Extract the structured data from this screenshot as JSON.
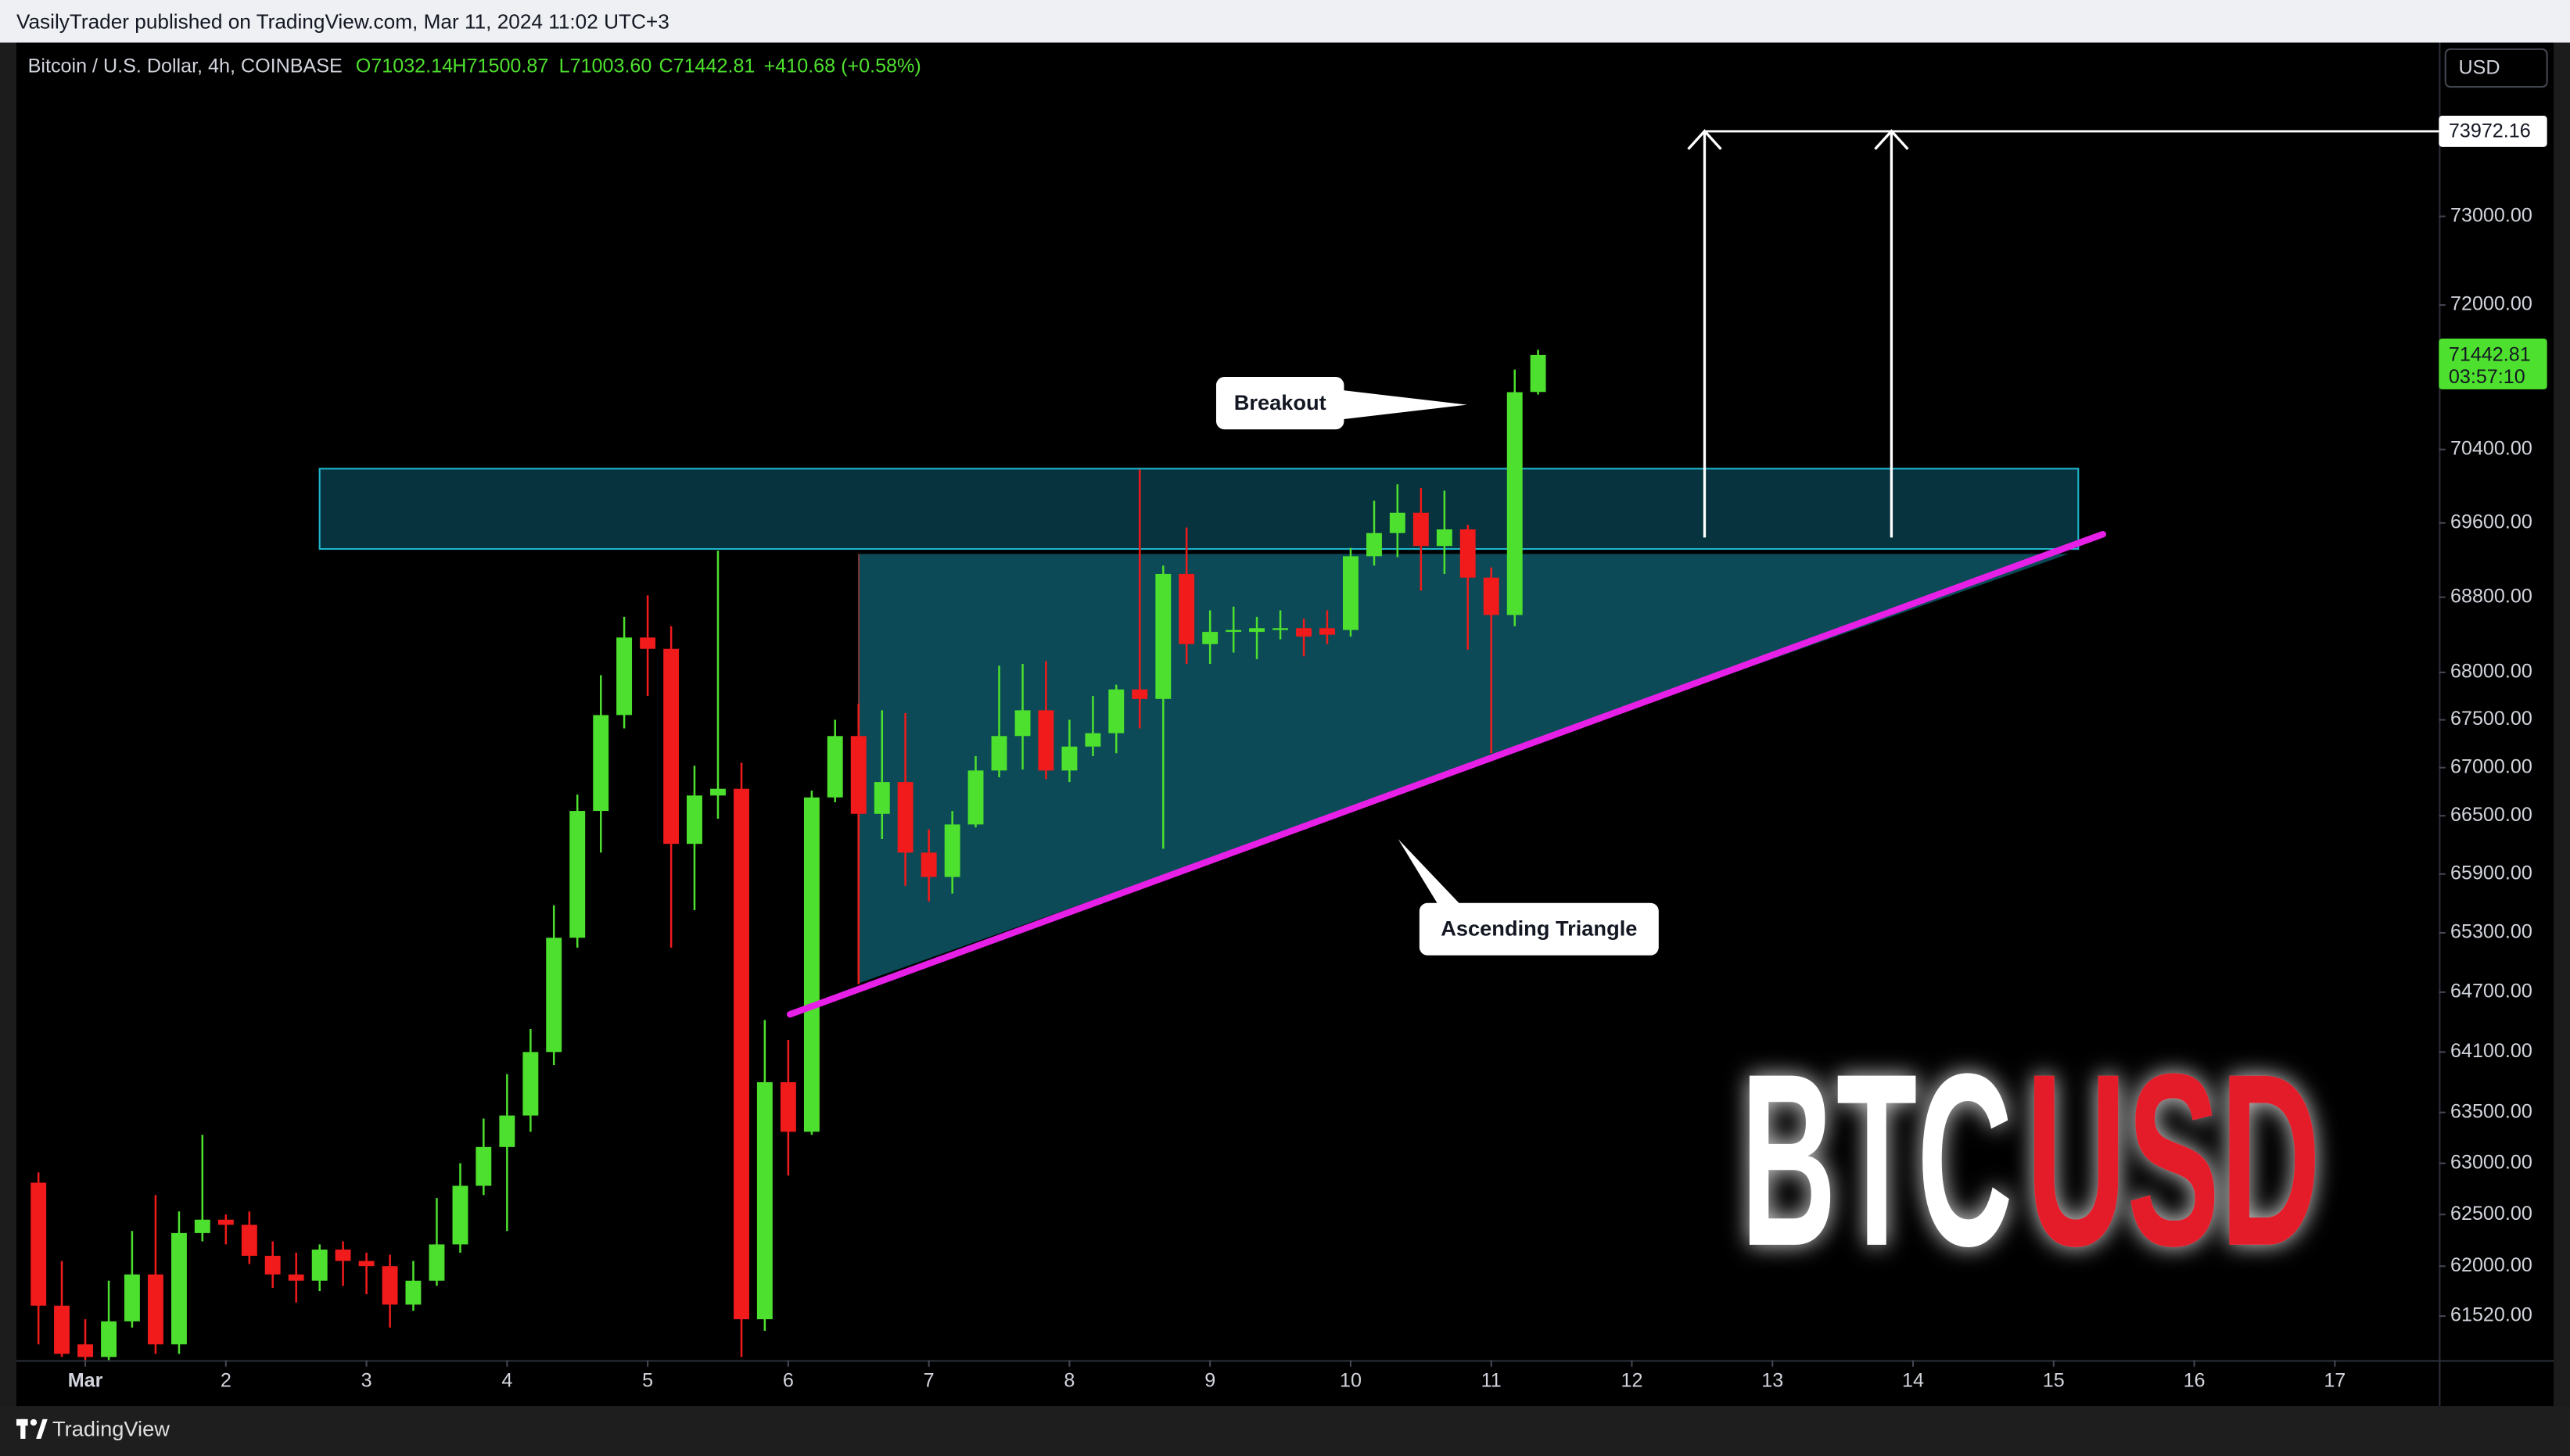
{
  "header": {
    "publisher": "VasilyTrader published on TradingView.com, Mar 11, 2024 11:02 UTC+3"
  },
  "footer": {
    "brand": "TradingView"
  },
  "chart_data": {
    "type": "candlestick",
    "legend": {
      "symbol": "Bitcoin / U.S. Dollar, 4h, COINBASE",
      "open": "O71032.14",
      "high": "H71500.87",
      "low": "L71003.60",
      "close": "C71442.81",
      "change": "+410.68 (+0.58%)"
    },
    "currency": "USD",
    "timer": "03:57:10",
    "annotations": {
      "breakout": "Breakout",
      "pattern": "Ascending Triangle"
    },
    "watermark": {
      "left": "BTC",
      "right": "USD"
    },
    "log_scale": true,
    "grid": false,
    "up_color": "#4ee02e",
    "down_color": "#f21b1b",
    "price_line": 73972.16,
    "xlim": [
      0.51,
      17.74
    ],
    "xticks": [
      {
        "value": 1,
        "label": "Mar"
      },
      2,
      3,
      4,
      5,
      6,
      7,
      8,
      9,
      10,
      11,
      12,
      13,
      14,
      15,
      16,
      17
    ],
    "ylim": [
      61100,
      75000
    ],
    "yticks": [
      {
        "value": 73000,
        "label": "73000.00"
      },
      {
        "value": 72000,
        "label": "72000.00"
      },
      {
        "value": 70400,
        "label": "70400.00"
      },
      {
        "value": 69600,
        "label": "69600.00"
      },
      {
        "value": 68800,
        "label": "68800.00"
      },
      {
        "value": 68000,
        "label": "68000.00"
      },
      {
        "value": 67500,
        "label": "67500.00"
      },
      {
        "value": 67000,
        "label": "67000.00"
      },
      {
        "value": 66500,
        "label": "66500.00"
      },
      {
        "value": 65900,
        "label": "65900.00"
      },
      {
        "value": 65300,
        "label": "65300.00"
      },
      {
        "value": 64700,
        "label": "64700.00"
      },
      {
        "value": 64100,
        "label": "64100.00"
      },
      {
        "value": 63500,
        "label": "63500.00"
      },
      {
        "value": 63000,
        "label": "63000.00"
      },
      {
        "value": 62500,
        "label": "62500.00"
      },
      {
        "value": 62000,
        "label": "62000.00"
      },
      {
        "value": 61520,
        "label": "61520.00"
      }
    ],
    "x": [
      0.667,
      0.833,
      1,
      1.167,
      1.333,
      1.5,
      1.667,
      1.833,
      2,
      2.167,
      2.333,
      2.5,
      2.667,
      2.833,
      3,
      3.167,
      3.333,
      3.5,
      3.667,
      3.833,
      4,
      4.167,
      4.333,
      4.5,
      4.667,
      4.833,
      5,
      5.167,
      5.333,
      5.5,
      5.667,
      5.833,
      6,
      6.167,
      6.333,
      6.5,
      6.667,
      6.833,
      7,
      7.167,
      7.333,
      7.5,
      7.667,
      7.833,
      8,
      8.167,
      8.333,
      8.5,
      8.667,
      8.833,
      9,
      9.167,
      9.333,
      9.5,
      9.667,
      9.833,
      10,
      10.167,
      10.333,
      10.5,
      10.667,
      10.833,
      11,
      11.167,
      11.333
    ],
    "open": [
      62810,
      61620,
      61250,
      61130,
      61470,
      61920,
      61250,
      62320,
      62450,
      62400,
      62100,
      61920,
      61860,
      62160,
      62050,
      62000,
      61630,
      61860,
      62210,
      62780,
      63160,
      63470,
      64100,
      65250,
      66550,
      67550,
      68370,
      68250,
      66210,
      66710,
      66780,
      61490,
      63800,
      63310,
      66690,
      67330,
      66520,
      66850,
      66120,
      65870,
      66410,
      66970,
      67330,
      67600,
      66970,
      67220,
      67360,
      67820,
      67720,
      69050,
      68300,
      68430,
      68430,
      68450,
      68470,
      68470,
      68450,
      69240,
      69490,
      69710,
      69350,
      69530,
      69010,
      68610,
      71032.14
    ],
    "high": [
      62910,
      62050,
      61490,
      61860,
      62340,
      62690,
      62530,
      63280,
      62500,
      62530,
      62240,
      62130,
      62210,
      62240,
      62130,
      62110,
      62050,
      62660,
      63000,
      63440,
      63880,
      64330,
      65580,
      66720,
      67970,
      68590,
      68820,
      68490,
      67020,
      69300,
      67050,
      64420,
      64220,
      66760,
      67500,
      67670,
      67600,
      67570,
      66360,
      66550,
      67120,
      68070,
      68090,
      68120,
      67500,
      67750,
      67870,
      70180,
      69140,
      69550,
      68660,
      68700,
      68590,
      68660,
      68570,
      68660,
      69330,
      69840,
      70020,
      69980,
      69950,
      69580,
      69120,
      71280,
      71500.87
    ],
    "low": [
      61250,
      61130,
      61100,
      61100,
      61410,
      61160,
      61160,
      62240,
      62210,
      62020,
      61790,
      61650,
      61760,
      61810,
      61730,
      61410,
      61570,
      61810,
      62130,
      62690,
      62340,
      63310,
      63970,
      65150,
      66120,
      67410,
      67750,
      65150,
      65530,
      66470,
      61130,
      61380,
      62880,
      63280,
      66640,
      64780,
      66260,
      65780,
      65620,
      65700,
      66380,
      66900,
      66980,
      66880,
      66850,
      67120,
      67150,
      67410,
      66160,
      68090,
      68090,
      68210,
      68140,
      68350,
      68170,
      68300,
      68380,
      69140,
      69230,
      68870,
      69050,
      68240,
      67150,
      68490,
      71003.6
    ],
    "close": [
      61620,
      61160,
      61130,
      61470,
      61920,
      61250,
      62320,
      62450,
      62400,
      62100,
      61920,
      61860,
      62160,
      62050,
      62000,
      61630,
      61860,
      62210,
      62780,
      63160,
      63470,
      64100,
      65250,
      66550,
      67550,
      68370,
      68250,
      66210,
      66710,
      66780,
      61490,
      63800,
      63310,
      66690,
      67330,
      66520,
      66850,
      66120,
      65870,
      66410,
      66970,
      67330,
      67600,
      66970,
      67220,
      67360,
      67820,
      67720,
      69050,
      68300,
      68430,
      68450,
      68470,
      68470,
      68380,
      68400,
      69240,
      69490,
      69710,
      69350,
      69530,
      69010,
      68610,
      71030,
      71442.81
    ]
  }
}
